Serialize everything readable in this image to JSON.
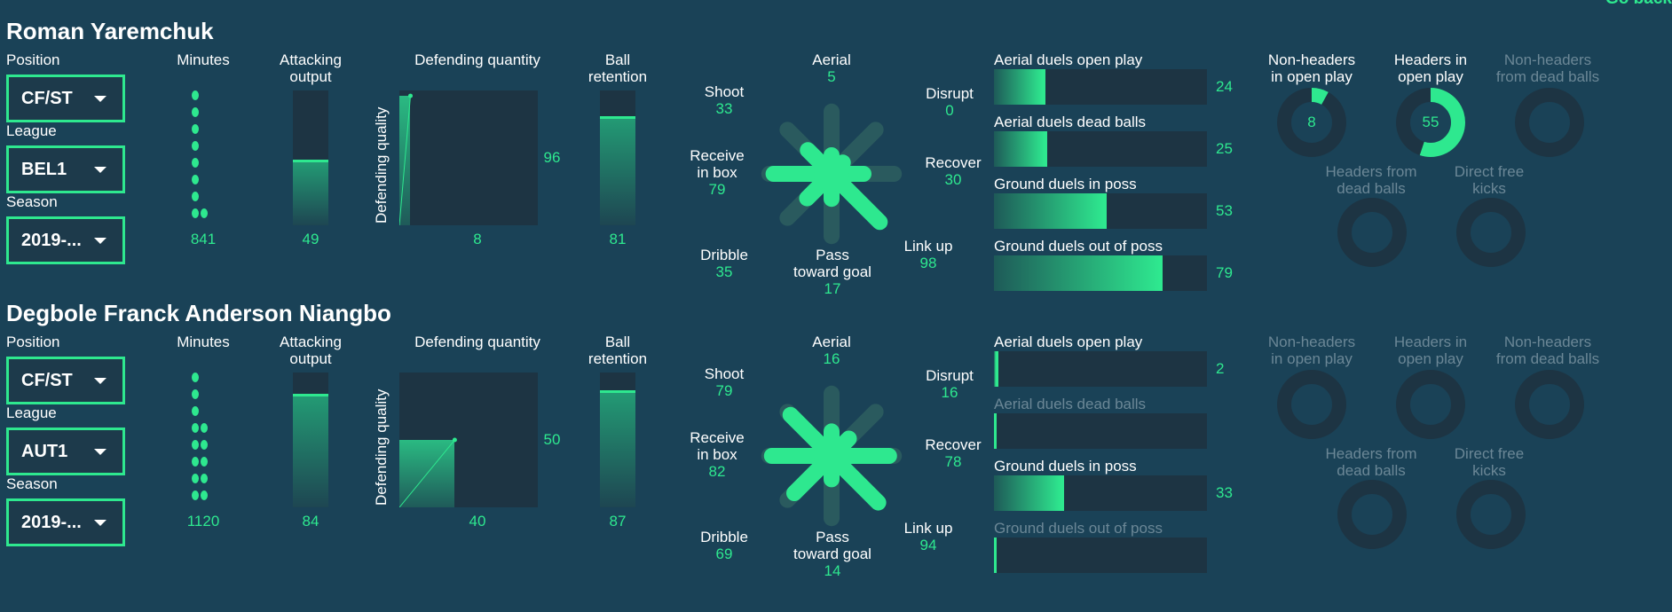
{
  "nav": {
    "go_back": "Go back"
  },
  "colors": {
    "accent": "#2ee88f",
    "background": "#1a4257",
    "panel": "#1d3443",
    "muted": "#6b8796"
  },
  "labels": {
    "position": "Position",
    "league": "League",
    "season": "Season",
    "minutes": "Minutes",
    "attacking_output": [
      "Attacking",
      "output"
    ],
    "defending_quantity": "Defending quantity",
    "defending_quality": "Defending quality",
    "ball_retention": [
      "Ball",
      "retention"
    ],
    "radar": {
      "aerial": "Aerial",
      "shoot": "Shoot",
      "disrupt": "Disrupt",
      "receive": [
        "Receive",
        "in box"
      ],
      "recover": "Recover",
      "dribble": "Dribble",
      "pass": [
        "Pass",
        "toward goal"
      ],
      "linkup": "Link up"
    },
    "duels": [
      "Aerial duels open play",
      "Aerial duels dead balls",
      "Ground duels in poss",
      "Ground duels out of poss"
    ],
    "donuts": {
      "non_headers_open": [
        "Non-headers",
        "in open play"
      ],
      "headers_open": [
        "Headers in",
        "open play"
      ],
      "non_headers_dead": [
        "Non-headers",
        "from dead balls"
      ],
      "headers_dead": [
        "Headers from",
        "dead balls"
      ],
      "direct_fk": [
        "Direct free",
        "kicks"
      ]
    }
  },
  "players": [
    {
      "name": "Roman Yaremchuk",
      "position": "CF/ST",
      "league": "BEL1",
      "season": "2019-...",
      "minutes": 841,
      "attacking_output": 49,
      "defending_quantity": 8,
      "defending_quality": 96,
      "ball_retention": 81,
      "radar": {
        "aerial": 5,
        "shoot": 33,
        "disrupt": 0,
        "receive": 79,
        "recover": 30,
        "dribble": 35,
        "pass": 17,
        "linkup": 98
      },
      "duels": [
        24,
        25,
        53,
        79
      ],
      "duels_active": [
        true,
        true,
        true,
        true
      ],
      "donuts": {
        "non_headers_open": 8,
        "headers_open": 55
      },
      "donuts_active": {
        "non_headers_open": true,
        "headers_open": true,
        "non_headers_dead": false,
        "headers_dead": false,
        "direct_fk": false
      }
    },
    {
      "name": "Degbole Franck Anderson Niangbo",
      "position": "CF/ST",
      "league": "AUT1",
      "season": "2019-...",
      "minutes": 1120,
      "attacking_output": 84,
      "defending_quantity": 40,
      "defending_quality": 50,
      "ball_retention": 87,
      "radar": {
        "aerial": 16,
        "shoot": 79,
        "disrupt": 16,
        "receive": 82,
        "recover": 78,
        "dribble": 69,
        "pass": 14,
        "linkup": 94
      },
      "duels": [
        2,
        null,
        33,
        null
      ],
      "duels_active": [
        true,
        false,
        true,
        false
      ],
      "donuts": {},
      "donuts_active": {
        "non_headers_open": false,
        "headers_open": false,
        "non_headers_dead": false,
        "headers_dead": false,
        "direct_fk": false
      }
    }
  ]
}
